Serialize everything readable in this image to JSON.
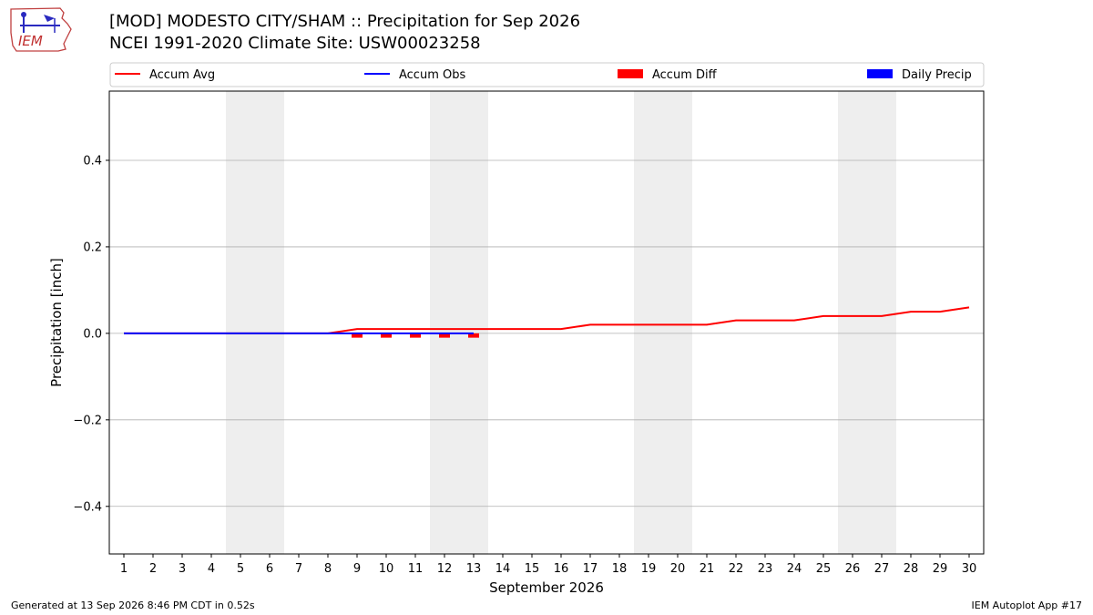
{
  "header": {
    "title_line1": "[MOD] MODESTO CITY/SHAM :: Precipitation for Sep 2026",
    "title_line2": "NCEI 1991-2020 Climate Site: USW00023258",
    "logo_text": "IEM"
  },
  "footer": {
    "generated": "Generated at 13 Sep 2026 8:46 PM CDT in 0.52s",
    "app": "IEM Autoplot App #17"
  },
  "colors": {
    "accum_avg": "#ff0000",
    "accum_obs": "#0000ff",
    "accum_diff": "#ff0000",
    "daily_precip": "#0000ff",
    "weekend_shade": "#eeeeee",
    "grid": "#b0b0b0"
  },
  "chart_data": {
    "type": "line",
    "xlabel": "September 2026",
    "ylabel": "Precipitation [inch]",
    "xlim": [
      0.5,
      30.5
    ],
    "ylim": [
      -0.51,
      0.56
    ],
    "yticks": [
      -0.4,
      -0.2,
      0.0,
      0.2,
      0.4
    ],
    "ytick_labels": [
      "−0.4",
      "−0.2",
      "0.0",
      "0.2",
      "0.4"
    ],
    "categories": [
      "1",
      "2",
      "3",
      "4",
      "5",
      "6",
      "7",
      "8",
      "9",
      "10",
      "11",
      "12",
      "13",
      "14",
      "15",
      "16",
      "17",
      "18",
      "19",
      "20",
      "21",
      "22",
      "23",
      "24",
      "25",
      "26",
      "27",
      "28",
      "29",
      "30"
    ],
    "grid": "horizontal",
    "legend_placement": "top",
    "legend": [
      "Accum Avg",
      "Accum Obs",
      "Accum Diff",
      "Daily Precip"
    ],
    "weekend_shading": [
      [
        5,
        6
      ],
      [
        12,
        13
      ],
      [
        19,
        20
      ],
      [
        26,
        27
      ]
    ],
    "series": [
      {
        "name": "Accum Avg",
        "kind": "line",
        "x": [
          1,
          2,
          3,
          4,
          5,
          6,
          7,
          8,
          9,
          10,
          11,
          12,
          13,
          14,
          15,
          16,
          17,
          18,
          19,
          20,
          21,
          22,
          23,
          24,
          25,
          26,
          27,
          28,
          29,
          30
        ],
        "values": [
          0,
          0,
          0,
          0,
          0,
          0,
          0,
          0,
          0.01,
          0.01,
          0.01,
          0.01,
          0.01,
          0.01,
          0.01,
          0.01,
          0.02,
          0.02,
          0.02,
          0.02,
          0.02,
          0.03,
          0.03,
          0.03,
          0.04,
          0.04,
          0.04,
          0.05,
          0.05,
          0.06
        ]
      },
      {
        "name": "Accum Obs",
        "kind": "line",
        "x": [
          1,
          2,
          3,
          4,
          5,
          6,
          7,
          8,
          9,
          10,
          11,
          12,
          13
        ],
        "values": [
          0,
          0,
          0,
          0,
          0,
          0,
          0,
          0,
          0,
          0,
          0,
          0,
          0
        ]
      },
      {
        "name": "Accum Diff",
        "kind": "bar",
        "x": [
          9,
          10,
          11,
          12,
          13
        ],
        "values": [
          -0.01,
          -0.01,
          -0.01,
          -0.01,
          -0.01
        ]
      },
      {
        "name": "Daily Precip",
        "kind": "bar",
        "x": [],
        "values": []
      }
    ]
  }
}
